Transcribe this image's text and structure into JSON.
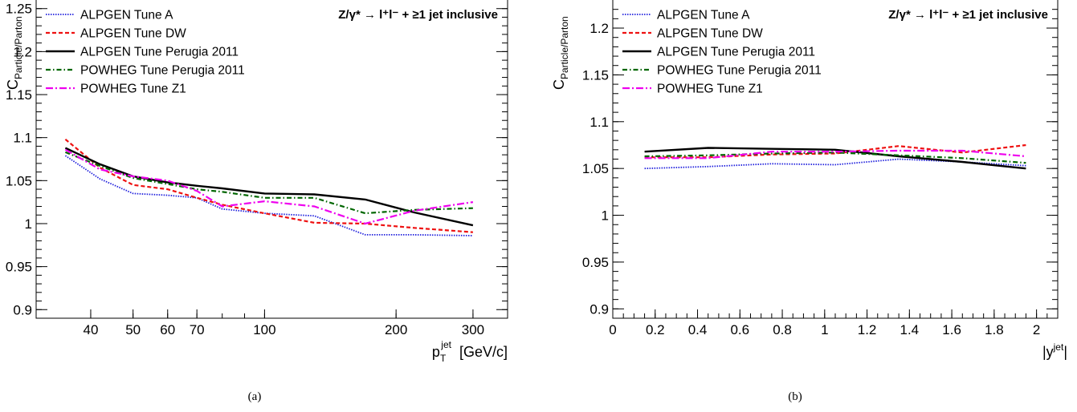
{
  "process_label": "Z/γ* → l⁺l⁻ + ≥1 jet inclusive",
  "y_axis_label_main": "C",
  "y_axis_label_sub": "Particle/Parton",
  "series_styles": [
    {
      "name": "ALPGEN Tune A",
      "color": "#2222dd",
      "dash": "1.5,1.5",
      "width": 1.8
    },
    {
      "name": "ALPGEN Tune DW",
      "color": "#ee1111",
      "dash": "5,3",
      "width": 2.2
    },
    {
      "name": "ALPGEN Tune Perugia 2011",
      "color": "#000000",
      "dash": "",
      "width": 2.4
    },
    {
      "name": "POWHEG Tune Perugia 2011",
      "color": "#006600",
      "dash": "6,3,1.5,3",
      "width": 2.2
    },
    {
      "name": "POWHEG Tune Z1",
      "color": "#ee00ee",
      "dash": "9,3,2,3",
      "width": 2.2
    }
  ],
  "chart_data": [
    {
      "type": "line",
      "caption": "(a)",
      "xlabel_main": "p",
      "xlabel_sub": "T",
      "xlabel_sup": "jet",
      "xlabel_unit": "[GeV/c]",
      "xscale": "log",
      "xlim": [
        30,
        360
      ],
      "ylim": [
        0.89,
        1.26
      ],
      "xticks": [
        40,
        50,
        60,
        70,
        100,
        200,
        300
      ],
      "yticks": [
        0.9,
        0.95,
        1,
        1.05,
        1.1,
        1.15,
        1.2,
        1.25
      ],
      "ytick_labels": [
        "0.9",
        "0.95",
        "1",
        "1.05",
        "1.1",
        "1.15",
        "1.2",
        "1.25"
      ],
      "legend_position": "top-left",
      "series": [
        {
          "name": "ALPGEN Tune A",
          "x": [
            35,
            42,
            50,
            60,
            70,
            80,
            100,
            130,
            170,
            220,
            300
          ],
          "y": [
            1.079,
            1.052,
            1.035,
            1.033,
            1.03,
            1.017,
            1.012,
            1.009,
            0.987,
            0.987,
            0.986
          ]
        },
        {
          "name": "ALPGEN Tune DW",
          "x": [
            35,
            42,
            50,
            60,
            70,
            80,
            100,
            130,
            170,
            220,
            300
          ],
          "y": [
            1.098,
            1.065,
            1.045,
            1.04,
            1.03,
            1.022,
            1.012,
            1.001,
            1.0,
            0.995,
            0.99
          ]
        },
        {
          "name": "ALPGEN Tune Perugia 2011",
          "x": [
            35,
            42,
            50,
            60,
            70,
            80,
            100,
            130,
            170,
            220,
            300
          ],
          "y": [
            1.088,
            1.069,
            1.055,
            1.048,
            1.044,
            1.041,
            1.035,
            1.034,
            1.028,
            1.013,
            0.998
          ]
        },
        {
          "name": "POWHEG Tune Perugia 2011",
          "x": [
            35,
            42,
            50,
            60,
            70,
            80,
            100,
            130,
            170,
            220,
            300
          ],
          "y": [
            1.083,
            1.067,
            1.053,
            1.046,
            1.04,
            1.037,
            1.03,
            1.03,
            1.012,
            1.016,
            1.018
          ]
        },
        {
          "name": "POWHEG Tune Z1",
          "x": [
            35,
            42,
            50,
            60,
            70,
            80,
            100,
            130,
            170,
            220,
            300
          ],
          "y": [
            1.086,
            1.063,
            1.055,
            1.05,
            1.038,
            1.02,
            1.026,
            1.02,
            1.0,
            1.015,
            1.025
          ]
        }
      ]
    },
    {
      "type": "line",
      "caption": "(b)",
      "xlabel_main": "|y",
      "xlabel_sup": "jet",
      "xlabel_end": "|",
      "xscale": "linear",
      "xlim": [
        0,
        2.1
      ],
      "ylim": [
        0.89,
        1.23
      ],
      "xticks": [
        0,
        0.2,
        0.4,
        0.6,
        0.8,
        1,
        1.2,
        1.4,
        1.6,
        1.8,
        2
      ],
      "xtick_labels": [
        "0",
        "0.2",
        "0.4",
        "0.6",
        "0.8",
        "1",
        "1.2",
        "1.4",
        "1.6",
        "1.8",
        "2"
      ],
      "yticks": [
        0.9,
        0.95,
        1,
        1.05,
        1.1,
        1.15,
        1.2
      ],
      "ytick_labels": [
        "0.9",
        "0.95",
        "1",
        "1.05",
        "1.1",
        "1.15",
        "1.2"
      ],
      "legend_position": "top-left",
      "series": [
        {
          "name": "ALPGEN Tune A",
          "x": [
            0.15,
            0.45,
            0.75,
            1.05,
            1.35,
            1.65,
            1.95
          ],
          "y": [
            1.05,
            1.052,
            1.055,
            1.054,
            1.06,
            1.057,
            1.053
          ]
        },
        {
          "name": "ALPGEN Tune DW",
          "x": [
            0.15,
            0.45,
            0.75,
            1.05,
            1.35,
            1.65,
            1.95
          ],
          "y": [
            1.062,
            1.062,
            1.065,
            1.066,
            1.074,
            1.067,
            1.075
          ]
        },
        {
          "name": "ALPGEN Tune Perugia 2011",
          "x": [
            0.15,
            0.45,
            0.75,
            1.05,
            1.35,
            1.65,
            1.95
          ],
          "y": [
            1.068,
            1.072,
            1.071,
            1.07,
            1.063,
            1.057,
            1.05
          ]
        },
        {
          "name": "POWHEG Tune Perugia 2011",
          "x": [
            0.15,
            0.45,
            0.75,
            1.05,
            1.35,
            1.65,
            1.95
          ],
          "y": [
            1.063,
            1.064,
            1.066,
            1.067,
            1.064,
            1.061,
            1.056
          ]
        },
        {
          "name": "POWHEG Tune Z1",
          "x": [
            0.15,
            0.45,
            0.75,
            1.05,
            1.35,
            1.65,
            1.95
          ],
          "y": [
            1.061,
            1.061,
            1.068,
            1.068,
            1.069,
            1.069,
            1.063
          ]
        }
      ]
    }
  ]
}
